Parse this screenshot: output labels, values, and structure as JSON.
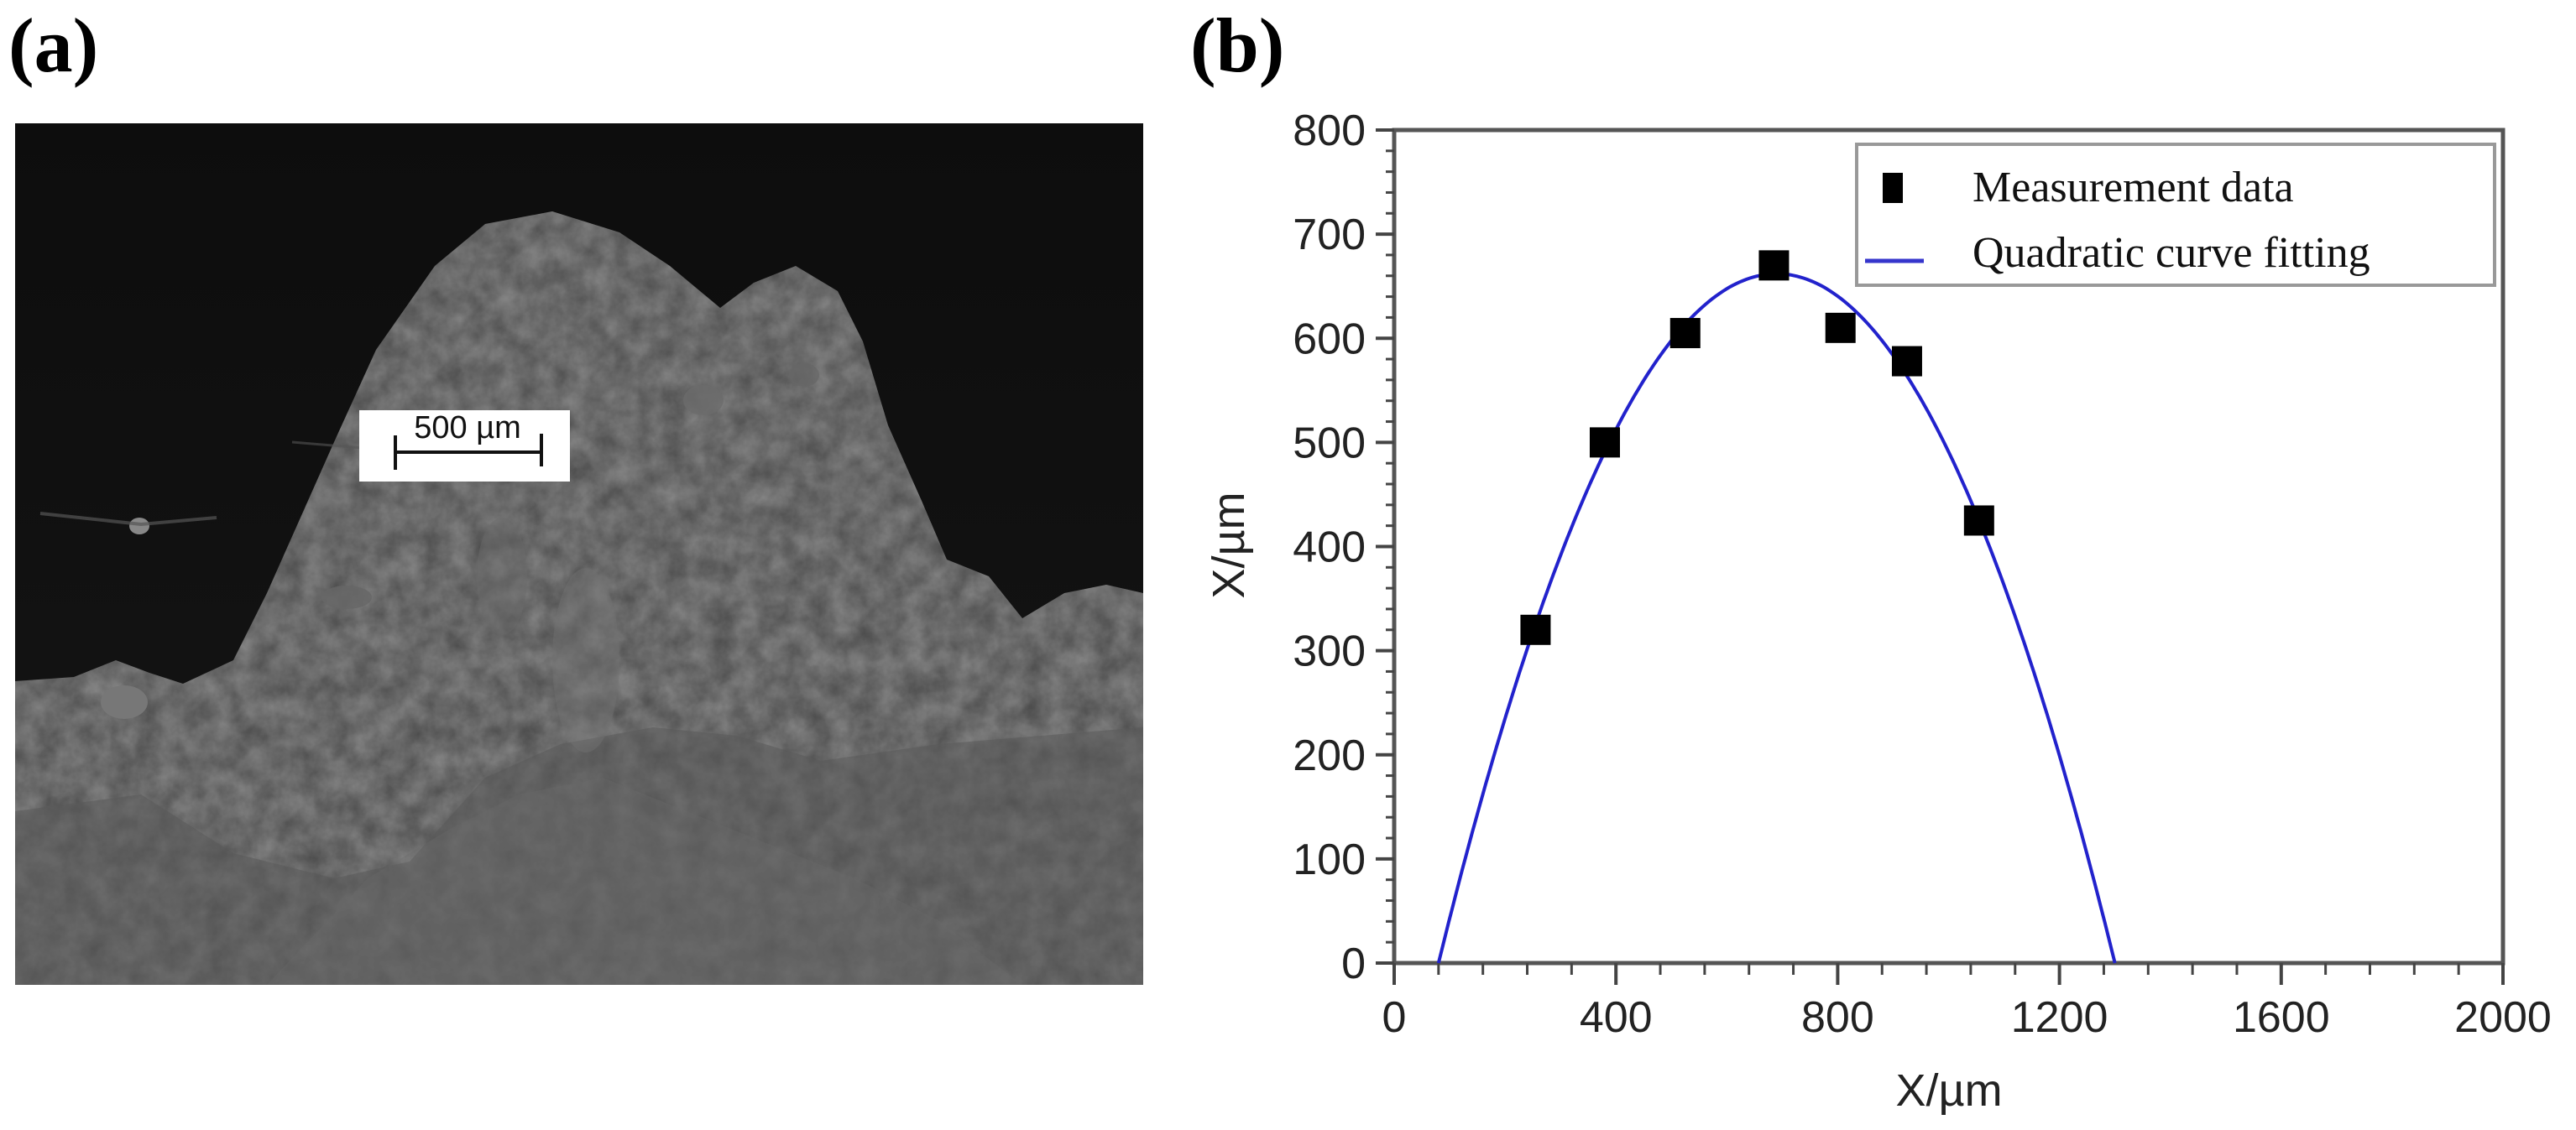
{
  "panels": {
    "a": {
      "label": "(a)"
    },
    "b": {
      "label": "(b)"
    }
  },
  "micrograph": {
    "description": "grayscale micrograph of rough surface profile",
    "scale_bar": {
      "label": "500 µm",
      "length_um": 500
    }
  },
  "chart_data": {
    "type": "scatter",
    "title": "",
    "xlabel": "X/µm",
    "ylabel": "X/µm",
    "xlim": [
      0,
      2000
    ],
    "ylim": [
      0,
      800
    ],
    "x_ticks": [
      0,
      400,
      800,
      1200,
      1600,
      2000
    ],
    "y_ticks": [
      0,
      100,
      200,
      300,
      400,
      500,
      600,
      700,
      800
    ],
    "x_minor_step": 80,
    "y_minor_step": 20,
    "grid": false,
    "legend_position": "upper right",
    "series": [
      {
        "name": "Measurement data",
        "type": "scatter",
        "marker": "square",
        "color": "#000000",
        "x": [
          255,
          380,
          525,
          685,
          805,
          925,
          1055
        ],
        "y": [
          320,
          500,
          605,
          670,
          610,
          578,
          425
        ]
      },
      {
        "name": "Quadratic curve fitting",
        "type": "line",
        "color": "#2222cc",
        "equation": "y = -0.001779 (x - 80)(x - 1300)",
        "coefficients": {
          "a": -0.001779,
          "root1": 80,
          "root2": 1300
        },
        "x_range": [
          80,
          1300
        ]
      }
    ]
  }
}
